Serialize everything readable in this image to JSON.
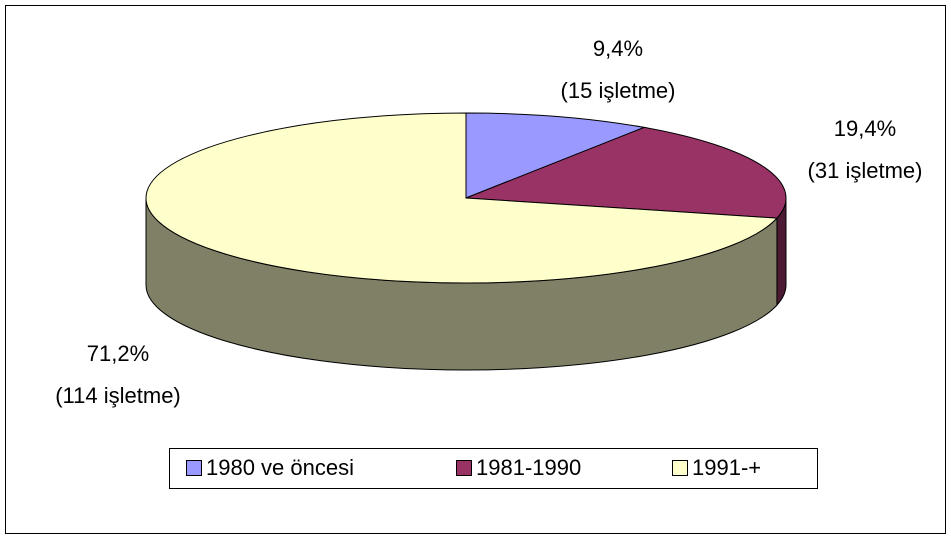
{
  "chart_data": {
    "type": "pie3d",
    "categories": [
      "1980 ve öncesi",
      "1981-1990",
      "1991-+"
    ],
    "values": [
      9.4,
      19.4,
      71.2
    ],
    "value_labels": [
      "9,4%",
      "19,4%",
      "71,2%"
    ],
    "annotations": [
      "(15 işletme)",
      "(31 işletme)",
      "(114 işletme)"
    ],
    "colors": [
      "#9999ff",
      "#993366",
      "#ffffcc"
    ],
    "legend": "bottom"
  }
}
